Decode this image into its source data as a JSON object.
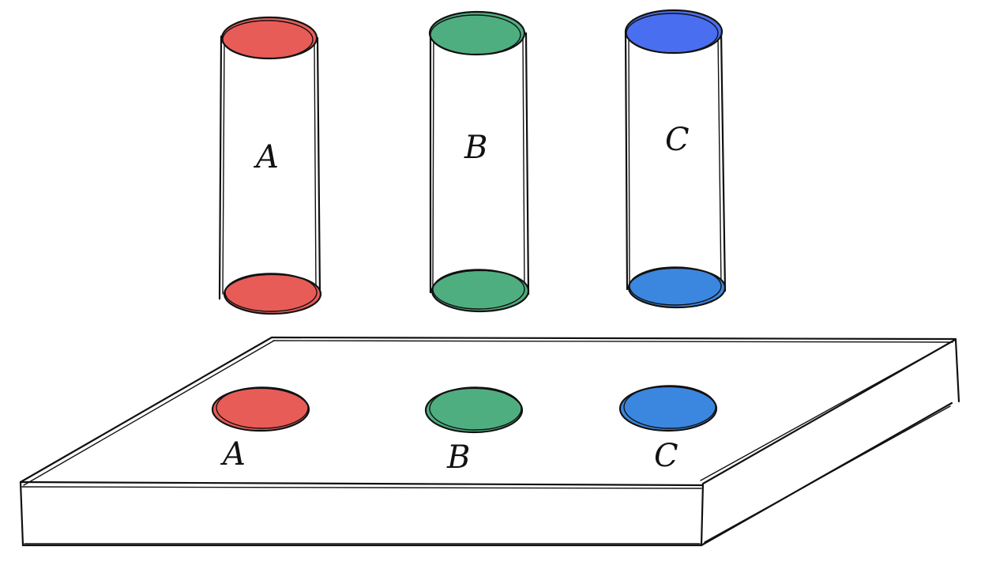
{
  "colors": {
    "red": "#e85c58",
    "green": "#4fae80",
    "blue_top": "#4a6ef0",
    "blue": "#3b87e0",
    "stroke": "#111111"
  },
  "cylinders": [
    {
      "label": "A",
      "top_color": "#e85c58",
      "bottom_color": "#e85c58"
    },
    {
      "label": "B",
      "top_color": "#4fae80",
      "bottom_color": "#4fae80"
    },
    {
      "label": "C",
      "top_color": "#4a6ef0",
      "bottom_color": "#3b87e0"
    }
  ],
  "board": {
    "holes": [
      {
        "label": "A",
        "color": "#e85c58"
      },
      {
        "label": "B",
        "color": "#4fae80"
      },
      {
        "label": "C",
        "color": "#3b87e0"
      }
    ]
  }
}
